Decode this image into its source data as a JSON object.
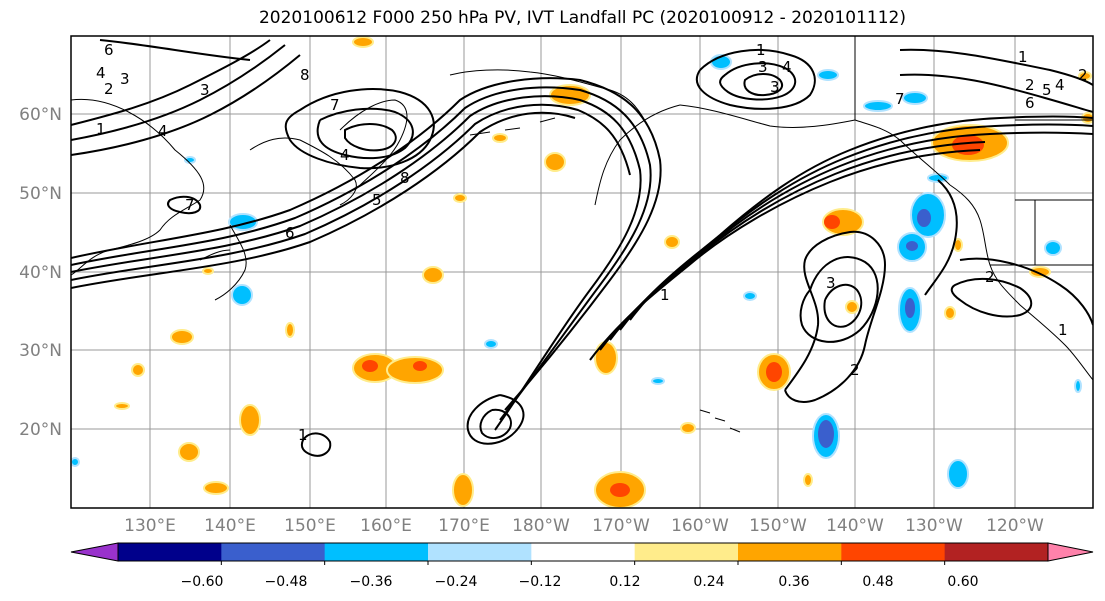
{
  "title": "2020100612 F000 250 hPa PV, IVT Landfall PC (2020100912 - 2020101112)",
  "map": {
    "lat_labels": [
      "60°N",
      "50°N",
      "40°N",
      "30°N",
      "20°N"
    ],
    "lon_labels": [
      "130°E",
      "140°E",
      "150°E",
      "160°E",
      "170°E",
      "180°W",
      "170°W",
      "160°W",
      "150°W",
      "140°W",
      "130°W",
      "120°W"
    ],
    "contour_labels": [
      "6",
      "4",
      "3",
      "2",
      "1",
      "4",
      "3",
      "8",
      "7",
      "4",
      "8",
      "5",
      "6",
      "7",
      "1",
      "3",
      "4",
      "3",
      "2",
      "1",
      "2",
      "7",
      "6",
      "5",
      "4",
      "1",
      "3",
      "2",
      "2",
      "1",
      "1"
    ]
  },
  "colorbar": {
    "tick_labels": [
      "−0.60",
      "−0.48",
      "−0.36",
      "−0.24",
      "−0.12",
      "0.12",
      "0.24",
      "0.36",
      "0.48",
      "0.60"
    ],
    "colors": [
      "#9932cc",
      "#00008b",
      "#3a5fcd",
      "#00bfff",
      "#b0e2ff",
      "#ffffff",
      "#ffec8b",
      "#ffa500",
      "#ff4500",
      "#b22222",
      "#ff82ab"
    ]
  }
}
